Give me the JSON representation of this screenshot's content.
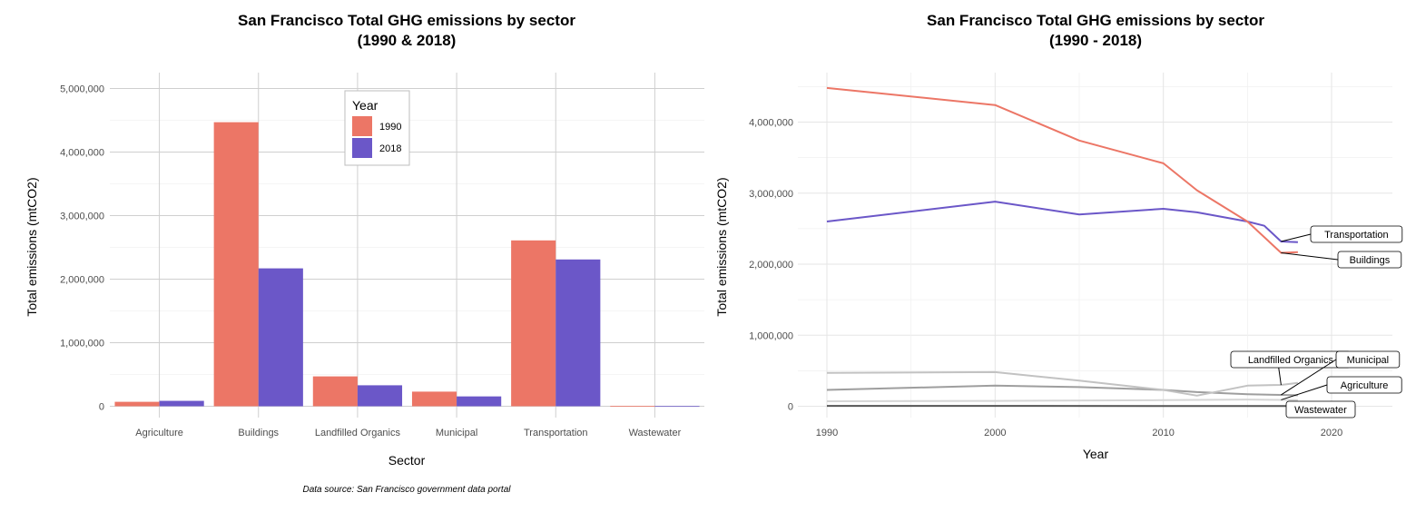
{
  "chart_data": [
    {
      "type": "bar",
      "title_line1": "San Francisco Total GHG emissions by sector",
      "title_line2": "(1990 & 2018)",
      "xlabel": "Sector",
      "ylabel": "Total emissions (mtCO2)",
      "caption": "Data source: San Francisco government data portal",
      "categories": [
        "Agriculture",
        "Buildings",
        "Landfilled Organics",
        "Municipal",
        "Transportation",
        "Wastewater"
      ],
      "series": [
        {
          "name": "1990",
          "color": "#EC7666",
          "values": [
            70000,
            4470000,
            470000,
            230000,
            2610000,
            5000
          ]
        },
        {
          "name": "2018",
          "color": "#6B57C8",
          "values": [
            85000,
            2170000,
            330000,
            155000,
            2310000,
            3000
          ]
        }
      ],
      "legend_title": "Year",
      "legend_position": "top-center",
      "ylim": [
        0,
        5200000
      ],
      "yticks": [
        0,
        1000000,
        2000000,
        3000000,
        4000000,
        5000000
      ],
      "ytick_labels": [
        "0",
        "1,000,000",
        "2,000,000",
        "3,000,000",
        "4,000,000",
        "5,000,000"
      ],
      "grid": true
    },
    {
      "type": "line",
      "title_line1": "San Francisco Total GHG emissions by sector",
      "title_line2": "(1990 - 2018)",
      "xlabel": "Year",
      "ylabel": "Total emissions (mtCO2)",
      "xlim": [
        1989,
        2023.5
      ],
      "ylim": [
        -200000,
        4750000
      ],
      "xticks": [
        1990,
        2000,
        2010,
        2020
      ],
      "xtick_labels": [
        "1990",
        "2000",
        "2010",
        "2020"
      ],
      "yticks": [
        0,
        1000000,
        2000000,
        3000000,
        4000000
      ],
      "ytick_labels": [
        "0",
        "1,000,000",
        "2,000,000",
        "3,000,000",
        "4,000,000"
      ],
      "grid": true,
      "series": [
        {
          "name": "Buildings",
          "color": "#EC7666",
          "x": [
            1990,
            2000,
            2005,
            2010,
            2012,
            2015,
            2017,
            2018
          ],
          "y": [
            4480000,
            4240000,
            3740000,
            3420000,
            3040000,
            2600000,
            2160000,
            2170000
          ]
        },
        {
          "name": "Transportation",
          "color": "#6B57C8",
          "x": [
            1990,
            2000,
            2005,
            2010,
            2012,
            2015,
            2016,
            2017,
            2018
          ],
          "y": [
            2600000,
            2880000,
            2700000,
            2780000,
            2730000,
            2600000,
            2540000,
            2320000,
            2310000
          ]
        },
        {
          "name": "Landfilled Organics",
          "color": "#C2C2C2",
          "x": [
            1990,
            2000,
            2005,
            2010,
            2012,
            2015,
            2017,
            2018
          ],
          "y": [
            470000,
            480000,
            360000,
            230000,
            150000,
            290000,
            300000,
            330000
          ]
        },
        {
          "name": "Municipal",
          "color": "#9E9E9E",
          "x": [
            1990,
            2000,
            2005,
            2010,
            2012,
            2015,
            2017,
            2018
          ],
          "y": [
            230000,
            290000,
            270000,
            230000,
            200000,
            170000,
            160000,
            155000
          ]
        },
        {
          "name": "Agriculture",
          "color": "#D6D6D6",
          "x": [
            1990,
            2000,
            2010,
            2015,
            2017,
            2018
          ],
          "y": [
            70000,
            75000,
            85000,
            95000,
            90000,
            85000
          ]
        },
        {
          "name": "Wastewater",
          "color": "#555555",
          "x": [
            1990,
            2000,
            2010,
            2018
          ],
          "y": [
            5000,
            5000,
            4000,
            3000
          ]
        }
      ]
    }
  ]
}
